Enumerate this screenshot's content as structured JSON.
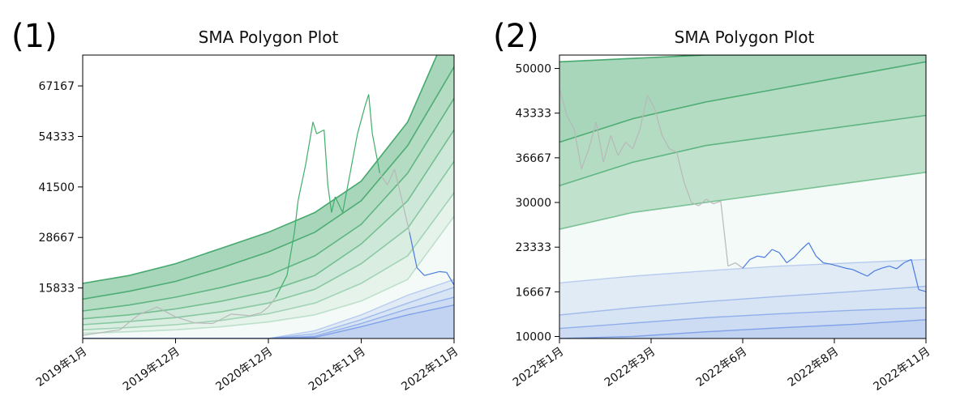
{
  "panels": [
    {
      "label": "(1)"
    },
    {
      "label": "(2)"
    }
  ],
  "colors": {
    "above": "#2e9e5a",
    "below": "#5b86e5",
    "price_up": "#3fae6a",
    "price_neutral": "#b8b8b8",
    "price_down": "#4a7be0"
  },
  "chart_data": [
    {
      "type": "area",
      "title": "SMA Polygon Plot",
      "xlabel": "",
      "ylabel": "",
      "ylim": [
        3000,
        75000
      ],
      "xlim": [
        "2019-01",
        "2022-11"
      ],
      "x_ticks": [
        "2019年1月",
        "2019年12月",
        "2020年12月",
        "2021年11月",
        "2022年11月"
      ],
      "y_ticks": [
        "15833",
        "28667",
        "41500",
        "54333",
        "67167"
      ],
      "grid": false,
      "price": {
        "x": [
          0.0,
          0.05,
          0.1,
          0.15,
          0.2,
          0.25,
          0.3,
          0.35,
          0.4,
          0.45,
          0.48,
          0.5,
          0.52,
          0.55,
          0.57,
          0.58,
          0.6,
          0.62,
          0.63,
          0.65,
          0.66,
          0.67,
          0.68,
          0.7,
          0.72,
          0.74,
          0.76,
          0.77,
          0.78,
          0.8,
          0.82,
          0.84,
          0.86,
          0.88,
          0.9,
          0.92,
          0.94,
          0.96,
          0.98,
          1.0
        ],
        "y": [
          3800,
          4500,
          5200,
          9000,
          11000,
          8500,
          7000,
          6800,
          9200,
          8800,
          9500,
          11000,
          13500,
          19000,
          30000,
          38000,
          47000,
          58000,
          55000,
          56000,
          42000,
          35000,
          39000,
          35000,
          45000,
          55000,
          62000,
          65000,
          55000,
          45000,
          42000,
          46000,
          38000,
          30000,
          21000,
          19000,
          19500,
          20000,
          19800,
          16600
        ],
        "segments": [
          {
            "name": "up",
            "from": 0.52,
            "to": 0.8
          },
          {
            "name": "down",
            "from": 0.88,
            "to": 1.0
          }
        ]
      },
      "bands_above": {
        "upper": [
          17000,
          19000,
          22000,
          26000,
          30000,
          35000,
          43000,
          58000,
          85000
        ],
        "lines": [
          [
            13000,
            15000,
            17500,
            21000,
            25000,
            30000,
            38000,
            52000,
            72000
          ],
          [
            10000,
            11500,
            13500,
            16000,
            19000,
            24000,
            32000,
            45000,
            64000
          ],
          [
            8000,
            9000,
            10500,
            12500,
            15000,
            19000,
            27000,
            38000,
            56000
          ],
          [
            6500,
            7300,
            8300,
            9800,
            12000,
            15500,
            22000,
            31000,
            48000
          ],
          [
            5200,
            5800,
            6500,
            7600,
            9300,
            12000,
            17000,
            24000,
            40000
          ],
          [
            4300,
            4700,
            5200,
            6000,
            7200,
            9000,
            12500,
            18000,
            34000
          ]
        ]
      },
      "bands_below": {
        "upper": [
          3000,
          3000,
          3000,
          3000,
          3000,
          5000,
          9000,
          14000,
          18000
        ],
        "lines": [
          [
            3000,
            3000,
            3000,
            3000,
            3000,
            4200,
            7800,
            12000,
            16000
          ],
          [
            3000,
            3000,
            3000,
            3000,
            3000,
            3600,
            6800,
            10500,
            13500
          ],
          [
            3000,
            3000,
            3000,
            3000,
            3000,
            3300,
            6000,
            9000,
            11500
          ]
        ]
      },
      "band_x": [
        0.0,
        0.125,
        0.25,
        0.375,
        0.5,
        0.625,
        0.75,
        0.875,
        1.0
      ]
    },
    {
      "type": "area",
      "title": "SMA Polygon Plot",
      "xlabel": "",
      "ylabel": "",
      "ylim": [
        9700,
        52000
      ],
      "xlim": [
        "2022-01",
        "2022-11"
      ],
      "x_ticks": [
        "2022年1月",
        "2022年3月",
        "2022年6月",
        "2022年8月",
        "2022年11月"
      ],
      "y_ticks": [
        "10000",
        "16667",
        "23333",
        "30000",
        "36667",
        "43333",
        "50000"
      ],
      "grid": false,
      "price": {
        "x": [
          0.0,
          0.02,
          0.04,
          0.06,
          0.08,
          0.1,
          0.12,
          0.14,
          0.16,
          0.18,
          0.2,
          0.22,
          0.24,
          0.26,
          0.28,
          0.3,
          0.32,
          0.34,
          0.36,
          0.38,
          0.4,
          0.42,
          0.44,
          0.46,
          0.48,
          0.5,
          0.52,
          0.54,
          0.56,
          0.58,
          0.6,
          0.62,
          0.64,
          0.66,
          0.68,
          0.7,
          0.72,
          0.74,
          0.76,
          0.78,
          0.8,
          0.82,
          0.84,
          0.86,
          0.88,
          0.9,
          0.92,
          0.94,
          0.96,
          0.98,
          1.0
        ],
        "y": [
          47000,
          43000,
          41000,
          35000,
          38000,
          42000,
          36000,
          40000,
          37000,
          39000,
          38000,
          41000,
          46000,
          44000,
          40000,
          38000,
          37500,
          33000,
          30000,
          29500,
          30500,
          29800,
          30200,
          20500,
          21000,
          20200,
          21500,
          22000,
          21800,
          23000,
          22500,
          21000,
          21800,
          23000,
          24000,
          22000,
          21000,
          20800,
          20500,
          20200,
          20000,
          19500,
          19000,
          19800,
          20200,
          20500,
          20100,
          21000,
          21500,
          17000,
          16700
        ],
        "segments": [
          {
            "name": "down",
            "from": 0.5,
            "to": 1.0
          }
        ]
      },
      "bands_above": {
        "upper": [
          51000,
          51500,
          52000,
          52000,
          52000,
          52000
        ],
        "lines": [
          [
            39000,
            42500,
            45000,
            47000,
            49000,
            51000
          ],
          [
            32500,
            36000,
            38500,
            40000,
            41500,
            43000
          ],
          [
            26000,
            28500,
            30000,
            31500,
            33000,
            34500
          ]
        ]
      },
      "bands_below": {
        "upper": [
          18000,
          19000,
          19800,
          20500,
          21000,
          21500
        ],
        "lines": [
          [
            13200,
            14300,
            15200,
            16000,
            16700,
            17500
          ],
          [
            11200,
            12000,
            12800,
            13400,
            13900,
            14300
          ],
          [
            9700,
            10000,
            10700,
            11300,
            11800,
            12500
          ]
        ]
      },
      "band_x": [
        0.0,
        0.2,
        0.4,
        0.6,
        0.8,
        1.0
      ]
    }
  ]
}
